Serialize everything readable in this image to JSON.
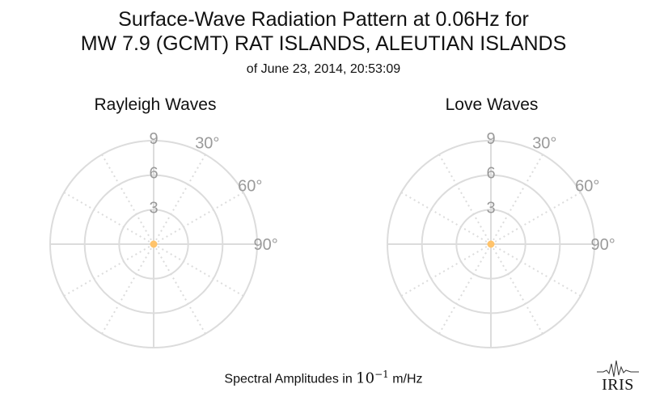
{
  "title_line1": "Surface-Wave Radiation Pattern at 0.06Hz for",
  "title_line2": "MW 7.9 (GCMT) RAT ISLANDS, ALEUTIAN ISLANDS",
  "title_line3": "of June 23, 2014, 20:53:09",
  "footer": {
    "prefix": "Spectral Amplitudes in ",
    "unit": "10",
    "exponent": "−1",
    "suffix": " m/Hz"
  },
  "logo_text": "IRIS",
  "colors": {
    "grid": "#dcdcdc",
    "tick_label": "#9a9a9a",
    "marker": "#ffc36b"
  },
  "chart_data": [
    {
      "type": "polar",
      "subtitle": "Rayleigh Waves",
      "radial_ticks": [
        3,
        6,
        9
      ],
      "radial_tick_labels": [
        "3",
        "6",
        "9"
      ],
      "angular_ticks_deg": [
        0,
        30,
        60,
        90,
        120,
        150,
        180,
        210,
        240,
        270,
        300,
        330
      ],
      "angular_labels": [
        {
          "angle": 30,
          "label": "30°"
        },
        {
          "angle": 60,
          "label": "60°"
        },
        {
          "angle": 90,
          "label": "90°"
        }
      ],
      "r_range": [
        0,
        9
      ],
      "series": [
        {
          "values": [
            {
              "angle": 0,
              "r": 0
            }
          ]
        }
      ]
    },
    {
      "type": "polar",
      "subtitle": "Love Waves",
      "radial_ticks": [
        3,
        6,
        9
      ],
      "radial_tick_labels": [
        "3",
        "6",
        "9"
      ],
      "angular_ticks_deg": [
        0,
        30,
        60,
        90,
        120,
        150,
        180,
        210,
        240,
        270,
        300,
        330
      ],
      "angular_labels": [
        {
          "angle": 30,
          "label": "30°"
        },
        {
          "angle": 60,
          "label": "60°"
        },
        {
          "angle": 90,
          "label": "90°"
        }
      ],
      "r_range": [
        0,
        9
      ],
      "series": [
        {
          "values": [
            {
              "angle": 0,
              "r": 0
            }
          ]
        }
      ]
    }
  ]
}
